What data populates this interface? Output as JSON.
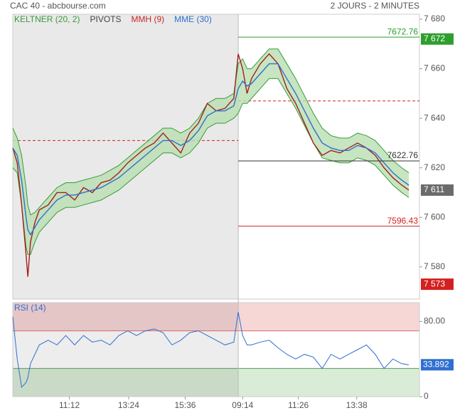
{
  "header": {
    "title": "CAC 40 - abcbourse.com",
    "period": "2 JOURS - 2 MINUTES"
  },
  "chart_data": {
    "type": "line",
    "legend": [
      {
        "name": "KELTNER (20, 2)",
        "color": "#3a9a3a"
      },
      {
        "name": "PIVOTS",
        "color": "#444444"
      },
      {
        "name": "MMH (9)",
        "color": "#c62828"
      },
      {
        "name": "MME (30)",
        "color": "#2f6fd0"
      }
    ],
    "x": [
      0,
      5,
      10,
      15,
      17,
      20,
      25,
      30,
      40,
      50,
      60,
      70,
      80,
      90,
      100,
      110,
      120,
      130,
      140,
      150,
      160,
      170,
      180,
      190,
      200,
      210,
      220,
      230,
      240,
      250,
      255,
      260,
      265,
      270,
      280,
      290,
      300,
      310,
      320,
      330,
      340,
      350,
      360,
      370,
      380,
      390,
      400,
      410,
      420,
      430,
      440,
      448
    ],
    "xlim": [
      0,
      460
    ],
    "xticks": [
      {
        "value": 64,
        "label": "11:12"
      },
      {
        "value": 131,
        "label": "13:24"
      },
      {
        "value": 195,
        "label": "15:36"
      },
      {
        "value": 260,
        "label": "09:14"
      },
      {
        "value": 323,
        "label": "11:26"
      },
      {
        "value": 389,
        "label": "13:38"
      }
    ],
    "shaded_until": 255,
    "ylim": [
      7567,
      7682
    ],
    "yticks": [
      {
        "value": 7580,
        "label": "7 580"
      },
      {
        "value": 7600,
        "label": "7 600"
      },
      {
        "value": 7620,
        "label": "7 620"
      },
      {
        "value": 7640,
        "label": "7 640"
      },
      {
        "value": 7660,
        "label": "7 660"
      },
      {
        "value": 7680,
        "label": "7 680"
      }
    ],
    "keltner_upper": {
      "color": "#3a9a3a",
      "values": [
        7636,
        7632,
        7625,
        7612,
        7605,
        7601,
        7602,
        7604,
        7608,
        7612,
        7614,
        7614,
        7615,
        7616,
        7617,
        7619,
        7621,
        7624,
        7627,
        7630,
        7633,
        7636,
        7636,
        7634,
        7636,
        7640,
        7646,
        7648,
        7648,
        7650,
        7662,
        7664,
        7660,
        7660,
        7664,
        7668,
        7668,
        7662,
        7656,
        7649,
        7642,
        7636,
        7633,
        7632,
        7632,
        7634,
        7633,
        7631,
        7627,
        7623,
        7620,
        7618
      ]
    },
    "keltner_lower": {
      "color": "#3a9a3a",
      "values": [
        7620,
        7618,
        7605,
        7588,
        7585,
        7585,
        7590,
        7594,
        7598,
        7602,
        7604,
        7604,
        7605,
        7606,
        7607,
        7609,
        7611,
        7614,
        7617,
        7620,
        7623,
        7626,
        7626,
        7624,
        7626,
        7630,
        7636,
        7638,
        7638,
        7640,
        7642,
        7646,
        7646,
        7648,
        7652,
        7656,
        7656,
        7650,
        7644,
        7637,
        7630,
        7624,
        7623,
        7622,
        7622,
        7624,
        7623,
        7621,
        7617,
        7613,
        7610,
        7608
      ]
    },
    "series": [
      {
        "name": "MMH (9)",
        "color": "#a32020",
        "values": [
          7628,
          7622,
          7605,
          7585,
          7576,
          7590,
          7598,
          7603,
          7605,
          7610,
          7610,
          7607,
          7612,
          7610,
          7614,
          7615,
          7618,
          7622,
          7625,
          7628,
          7630,
          7634,
          7630,
          7626,
          7634,
          7638,
          7646,
          7643,
          7644,
          7648,
          7666,
          7660,
          7650,
          7656,
          7662,
          7666,
          7662,
          7652,
          7646,
          7638,
          7630,
          7625,
          7627,
          7626,
          7628,
          7630,
          7628,
          7625,
          7620,
          7616,
          7613,
          7611
        ]
      },
      {
        "name": "MME (30)",
        "color": "#2f6fd0",
        "values": [
          7628,
          7625,
          7615,
          7600,
          7595,
          7593,
          7596,
          7599,
          7603,
          7607,
          7609,
          7609,
          7610,
          7611,
          7612,
          7614,
          7616,
          7619,
          7622,
          7625,
          7628,
          7631,
          7631,
          7629,
          7631,
          7635,
          7641,
          7643,
          7643,
          7645,
          7652,
          7655,
          7653,
          7654,
          7658,
          7662,
          7662,
          7656,
          7650,
          7643,
          7636,
          7630,
          7628,
          7627,
          7627,
          7629,
          7628,
          7626,
          7622,
          7618,
          7615,
          7613
        ]
      }
    ],
    "levels": [
      {
        "value": 7672.76,
        "color": "#2e9e2e",
        "start": 255,
        "end": 460
      },
      {
        "value": 7622.76,
        "color": "#333333",
        "start": 255,
        "end": 460
      },
      {
        "value": 7596.43,
        "color": "#d42020",
        "start": 255,
        "end": 460
      }
    ],
    "pivot_lines": [
      {
        "value": 7631,
        "color": "#d42020",
        "start": 0,
        "end": 255
      },
      {
        "value": 7647,
        "color": "#d42020",
        "start": 255,
        "end": 460
      }
    ],
    "markers": [
      {
        "value": 7672,
        "label": "7 672",
        "color": "#2e9e2e"
      },
      {
        "value": 7611,
        "label": "7 611",
        "color": "#6b6b6b"
      },
      {
        "value": 7573,
        "label": "7 573",
        "color": "#d42020"
      }
    ],
    "rsi": {
      "type": "line",
      "title": "RSI (14)",
      "color": "#2f6fd0",
      "ylim": [
        0,
        100
      ],
      "yticks": [
        0,
        {
          "value": 80,
          "label": "80.00"
        }
      ],
      "overbought": 70,
      "oversold": 30,
      "values": [
        85,
        40,
        10,
        15,
        20,
        35,
        45,
        55,
        60,
        55,
        65,
        55,
        65,
        58,
        60,
        55,
        65,
        70,
        65,
        70,
        72,
        68,
        55,
        60,
        68,
        70,
        65,
        60,
        55,
        58,
        90,
        65,
        55,
        55,
        58,
        60,
        52,
        45,
        40,
        45,
        42,
        30,
        45,
        40,
        45,
        50,
        55,
        45,
        30,
        40,
        35,
        33.892
      ]
    }
  }
}
